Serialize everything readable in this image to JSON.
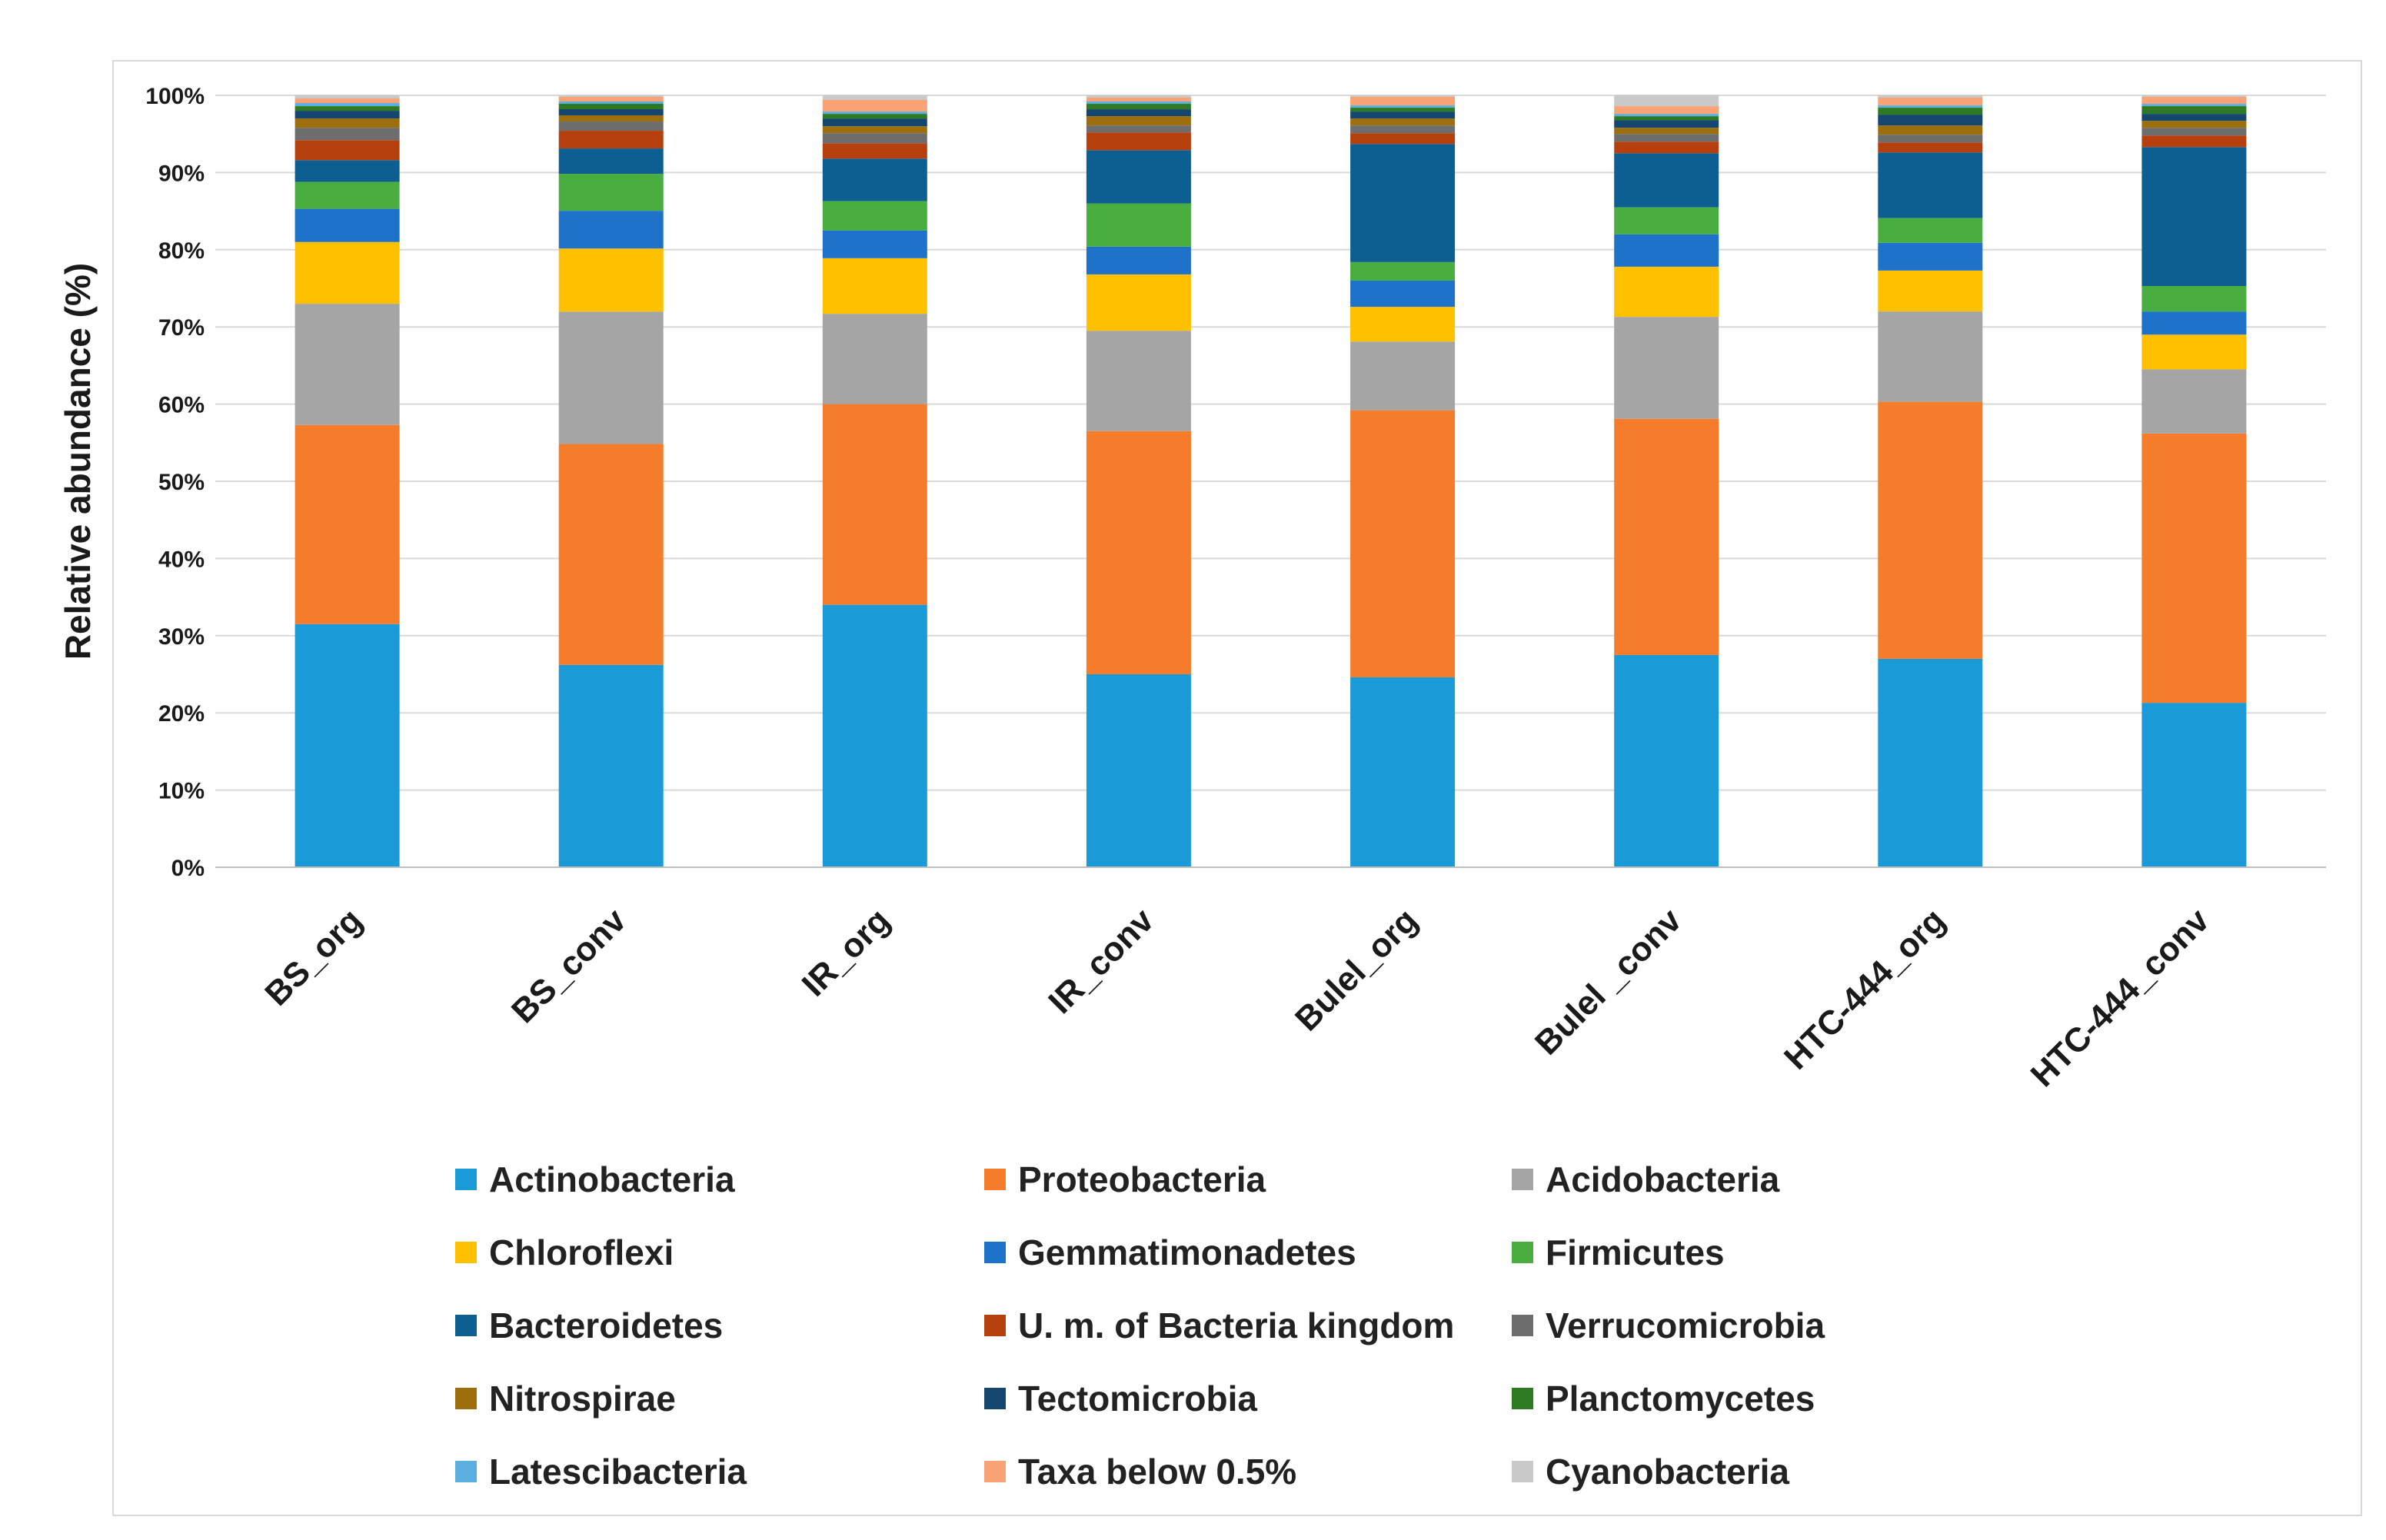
{
  "chart_data": {
    "type": "bar",
    "stacked": true,
    "normalized": true,
    "title": "",
    "xlabel": "",
    "ylabel": "Relative abundance (%)",
    "ylim": [
      0,
      100
    ],
    "yticks": [
      "0%",
      "10%",
      "20%",
      "30%",
      "40%",
      "50%",
      "60%",
      "70%",
      "80%",
      "90%",
      "100%"
    ],
    "grid": true,
    "legend_position": "bottom",
    "categories": [
      "BS_org",
      "BS_conv",
      "IR_org",
      "IR_conv",
      "Bulel_org",
      "Bulel _conv",
      "HTC-444_org",
      "HTC-444_conv"
    ],
    "series": [
      {
        "name": "Actinobacteria",
        "color": "#1a9bd7",
        "values": [
          31.5,
          26.3,
          34.0,
          25.0,
          24.6,
          27.5,
          27.0,
          21.3
        ]
      },
      {
        "name": "Proteobacteria",
        "color": "#f47c2a",
        "values": [
          25.8,
          28.7,
          26.0,
          31.5,
          34.6,
          30.6,
          33.3,
          34.9
        ]
      },
      {
        "name": "Acidobacteria",
        "color": "#a5a5a5",
        "values": [
          15.7,
          17.2,
          11.7,
          13.0,
          8.9,
          13.2,
          11.7,
          8.3
        ]
      },
      {
        "name": "Chloroflexi",
        "color": "#ffc000",
        "values": [
          8.0,
          8.2,
          7.2,
          7.3,
          4.5,
          6.5,
          5.3,
          4.5
        ]
      },
      {
        "name": "Gemmatimonadetes",
        "color": "#1f72c9",
        "values": [
          4.3,
          4.9,
          3.6,
          3.6,
          3.4,
          4.2,
          3.6,
          3.0
        ]
      },
      {
        "name": "Firmicutes",
        "color": "#4aad3f",
        "values": [
          3.5,
          4.8,
          3.8,
          5.6,
          2.4,
          3.5,
          3.2,
          3.3
        ]
      },
      {
        "name": "Bacteroidetes",
        "color": "#0d5f91",
        "values": [
          2.8,
          3.3,
          5.5,
          6.9,
          15.3,
          7.0,
          8.5,
          18.0
        ]
      },
      {
        "name": "U. m. of Bacteria kingdom",
        "color": "#b5400e",
        "values": [
          2.6,
          2.3,
          2.0,
          2.3,
          1.4,
          1.5,
          1.3,
          1.5
        ]
      },
      {
        "name": "Verrucomicrobia",
        "color": "#6d6d6d",
        "values": [
          1.6,
          1.2,
          1.3,
          0.9,
          1.0,
          1.0,
          1.0,
          1.0
        ]
      },
      {
        "name": "Nitrospirae",
        "color": "#9c6f0c",
        "values": [
          1.2,
          0.8,
          0.9,
          1.2,
          0.9,
          0.8,
          1.2,
          0.9
        ]
      },
      {
        "name": "Tectomicrobia",
        "color": "#14466f",
        "values": [
          1.0,
          0.8,
          1.0,
          0.9,
          0.9,
          1.0,
          1.4,
          0.9
        ]
      },
      {
        "name": "Planctomycetes",
        "color": "#2e7a22",
        "values": [
          0.6,
          0.7,
          0.6,
          0.7,
          0.5,
          0.5,
          0.9,
          1.0
        ]
      },
      {
        "name": "Latescibacteria",
        "color": "#5aaee0",
        "values": [
          0.4,
          0.3,
          0.3,
          0.3,
          0.3,
          0.3,
          0.3,
          0.3
        ]
      },
      {
        "name": "Taxa below 0.5%",
        "color": "#f8a276",
        "values": [
          0.6,
          0.6,
          1.5,
          0.5,
          1.1,
          1.0,
          1.0,
          0.9
        ]
      },
      {
        "name": "Cyanobacteria",
        "color": "#c9c9c9",
        "values": [
          0.4,
          0.2,
          0.6,
          0.3,
          0.2,
          1.4,
          0.3,
          0.2
        ]
      }
    ]
  }
}
